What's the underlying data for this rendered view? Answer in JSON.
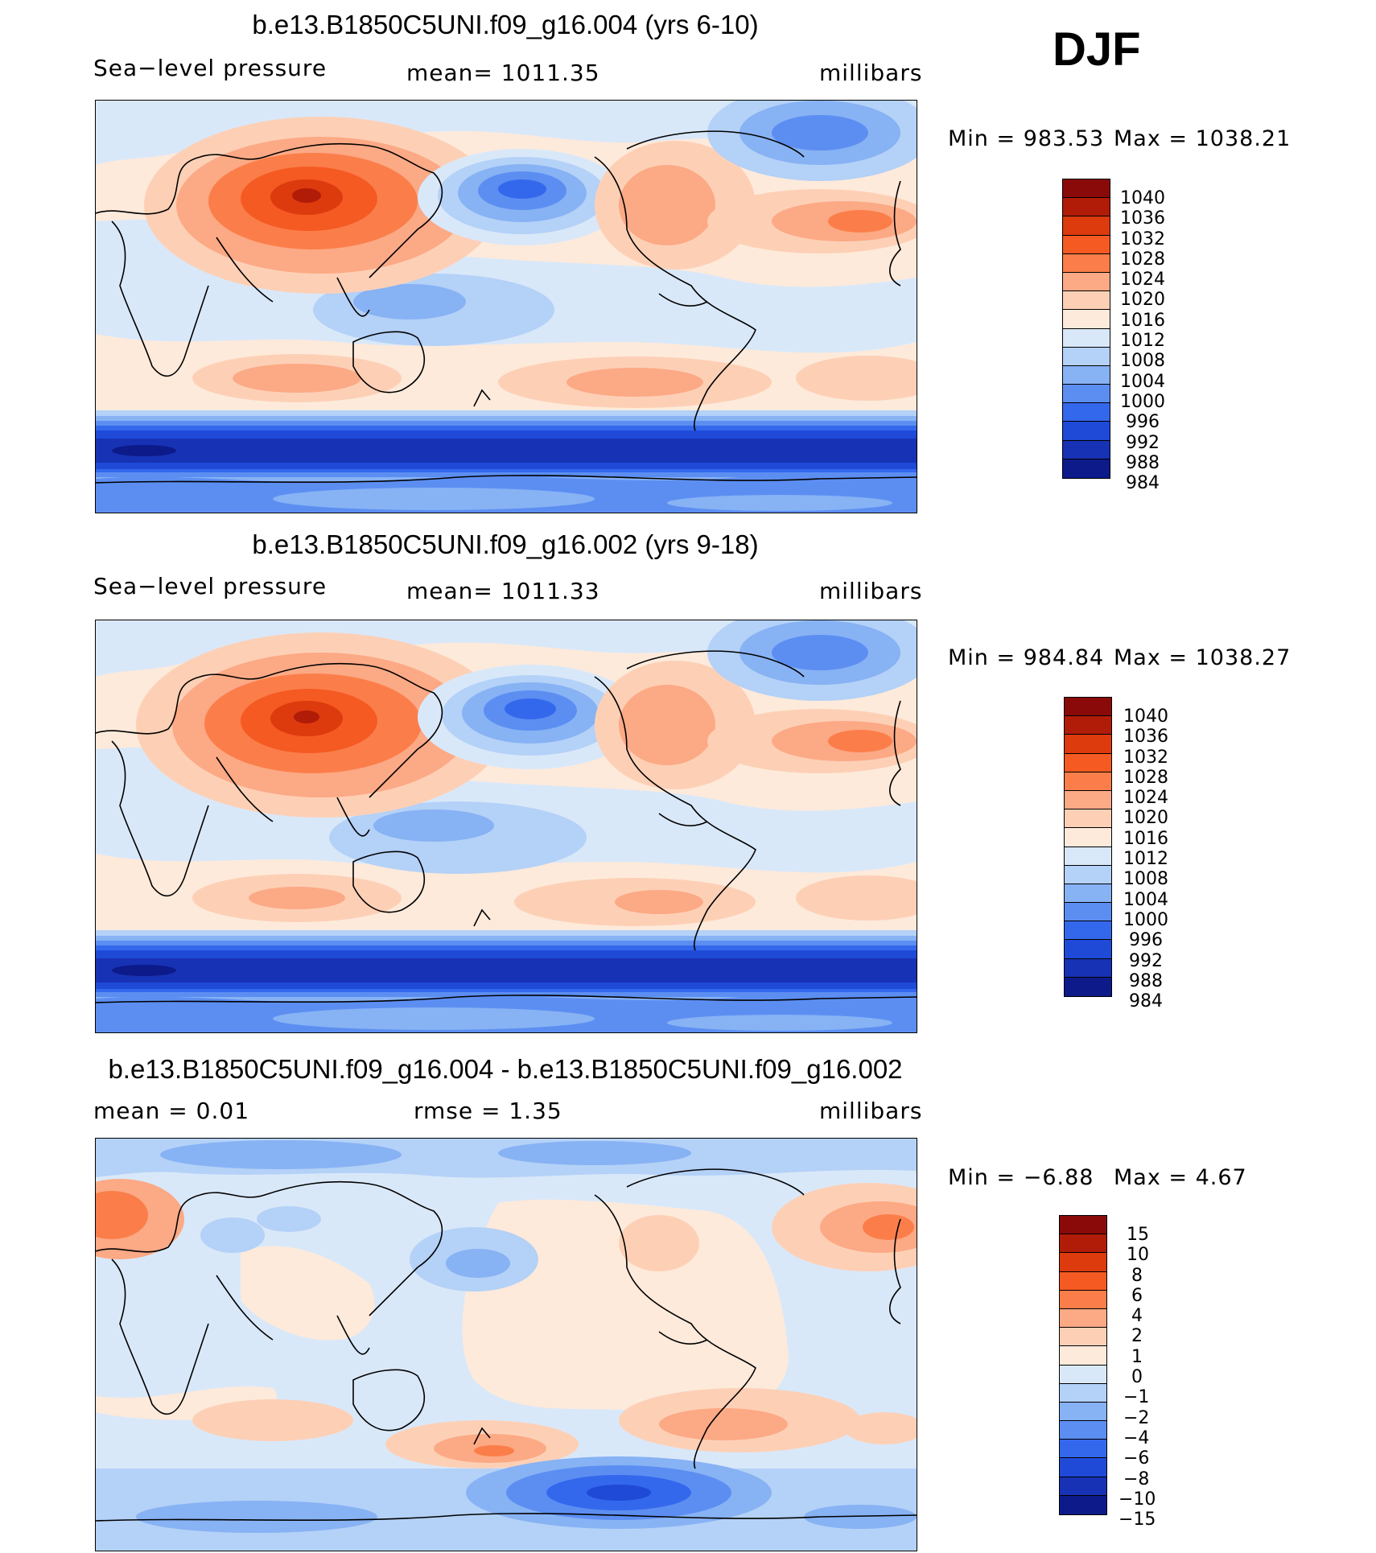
{
  "season": "DJF",
  "chart_data": [
    {
      "type": "heatmap",
      "title": "b.e13.B1850C5UNI.f09_g16.004 (yrs 6-10)",
      "left_label": "Sea−level pressure",
      "center_label": "mean=  1011.35",
      "units": "millibars",
      "min_text": "Min  =  983.53",
      "max_text": "Max  =  1038.21",
      "min": 983.53,
      "max": 1038.21,
      "mean": 1011.35,
      "contour_levels": [
        "1040",
        "1036",
        "1032",
        "1028",
        "1024",
        "1020",
        "1016",
        "1012",
        "1008",
        "1004",
        "1000",
        "996",
        "992",
        "988",
        "984"
      ],
      "colors": [
        "#8a0a0a",
        "#b11c08",
        "#dd3a0e",
        "#f55a22",
        "#fb7e4a",
        "#fca985",
        "#fdd0b6",
        "#fdeadb",
        "#d9e8f9",
        "#b4d1f7",
        "#87b2f4",
        "#5c8ef2",
        "#3468ec",
        "#1f4ad8",
        "#1732b4",
        "#0c1a8a"
      ]
    },
    {
      "type": "heatmap",
      "title": "b.e13.B1850C5UNI.f09_g16.002 (yrs 9-18)",
      "left_label": "Sea−level pressure",
      "center_label": "mean=  1011.33",
      "units": "millibars",
      "min_text": "Min  =  984.84",
      "max_text": "Max  =  1038.27",
      "min": 984.84,
      "max": 1038.27,
      "mean": 1011.33,
      "contour_levels": [
        "1040",
        "1036",
        "1032",
        "1028",
        "1024",
        "1020",
        "1016",
        "1012",
        "1008",
        "1004",
        "1000",
        "996",
        "992",
        "988",
        "984"
      ],
      "colors": [
        "#8a0a0a",
        "#b11c08",
        "#dd3a0e",
        "#f55a22",
        "#fb7e4a",
        "#fca985",
        "#fdd0b6",
        "#fdeadb",
        "#d9e8f9",
        "#b4d1f7",
        "#87b2f4",
        "#5c8ef2",
        "#3468ec",
        "#1f4ad8",
        "#1732b4",
        "#0c1a8a"
      ]
    },
    {
      "type": "heatmap",
      "title": "b.e13.B1850C5UNI.f09_g16.004 - b.e13.B1850C5UNI.f09_g16.002",
      "left_label": "mean  =      0.01",
      "center_label": "rmse  =      1.35",
      "units": "millibars",
      "min_text": "Min  =    −6.88",
      "max_text": "Max  =      4.67",
      "min": -6.88,
      "max": 4.67,
      "mean": 0.01,
      "rmse": 1.35,
      "contour_levels": [
        "15",
        "10",
        "8",
        "6",
        "4",
        "2",
        "1",
        "0",
        "−1",
        "−2",
        "−4",
        "−6",
        "−8",
        "−10",
        "−15"
      ],
      "colors": [
        "#8a0a0a",
        "#b11c08",
        "#dd3a0e",
        "#f55a22",
        "#fb7e4a",
        "#fca985",
        "#fdd0b6",
        "#fdeadb",
        "#d9e8f9",
        "#b4d1f7",
        "#87b2f4",
        "#5c8ef2",
        "#3468ec",
        "#1f4ad8",
        "#1732b4",
        "#0c1a8a"
      ]
    }
  ]
}
